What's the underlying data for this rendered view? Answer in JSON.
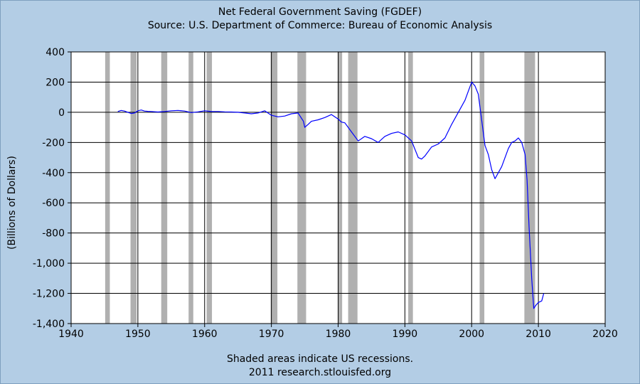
{
  "title": "Net Federal Government Saving (FGDEF)",
  "subtitle": "Source: U.S. Department of Commerce: Bureau of Economic Analysis",
  "footer": {
    "line1": "Shaded areas indicate US recessions.",
    "line2": "2011 research.stlouisfed.org"
  },
  "colors": {
    "background": "#b3cde5",
    "plot": "#ffffff",
    "line": "#0000ff",
    "recession": "#b0b0b0",
    "grid": "#000000"
  },
  "chart_data": {
    "type": "line",
    "title": "Net Federal Government Saving (FGDEF)",
    "subtitle": "Source: U.S. Department of Commerce: Bureau of Economic Analysis",
    "xlabel": "",
    "ylabel": "(Billions of Dollars)",
    "xlim": [
      1940,
      2020
    ],
    "ylim": [
      -1400,
      400
    ],
    "xticks": [
      1940,
      1950,
      1960,
      1970,
      1980,
      1990,
      2000,
      2010,
      2020
    ],
    "xtick_labels": [
      "1940",
      "1950",
      "1960",
      "1970",
      "1980",
      "1990",
      "2000",
      "2010",
      "2020"
    ],
    "yticks": [
      -1400,
      -1200,
      -1000,
      -800,
      -600,
      -400,
      -200,
      0,
      200,
      400
    ],
    "ytick_labels": [
      "-1,400",
      "-1,200",
      "-1,000",
      "-800",
      "-600",
      "-400",
      "-200",
      "0",
      "200",
      "400"
    ],
    "grid": true,
    "recessions": [
      [
        1945.1,
        1945.8
      ],
      [
        1948.9,
        1949.8
      ],
      [
        1953.5,
        1954.4
      ],
      [
        1957.6,
        1958.3
      ],
      [
        1960.3,
        1961.1
      ],
      [
        1969.9,
        1970.9
      ],
      [
        1973.9,
        1975.2
      ],
      [
        1980.0,
        1980.6
      ],
      [
        1981.5,
        1982.9
      ],
      [
        1990.5,
        1991.2
      ],
      [
        2001.2,
        2001.9
      ],
      [
        2007.9,
        2009.5
      ]
    ],
    "series": [
      {
        "name": "",
        "x": [
          1947.0,
          1947.5,
          1948.0,
          1948.5,
          1949.0,
          1949.5,
          1950.0,
          1950.5,
          1951.0,
          1951.5,
          1952.0,
          1953.0,
          1954.0,
          1955.0,
          1956.0,
          1957.0,
          1958.0,
          1959.0,
          1960.0,
          1961.0,
          1962.0,
          1963.0,
          1964.0,
          1965.0,
          1966.0,
          1967.0,
          1968.0,
          1969.0,
          1970.0,
          1971.0,
          1972.0,
          1973.0,
          1974.0,
          1974.8,
          1975.0,
          1975.5,
          1976.0,
          1977.0,
          1978.0,
          1979.0,
          1980.0,
          1980.5,
          1981.0,
          1982.0,
          1983.0,
          1984.0,
          1985.0,
          1986.0,
          1987.0,
          1988.0,
          1989.0,
          1990.0,
          1991.0,
          1992.0,
          1992.5,
          1993.0,
          1994.0,
          1995.0,
          1996.0,
          1997.0,
          1998.0,
          1999.0,
          2000.0,
          2000.5,
          2001.0,
          2001.5,
          2002.0,
          2002.5,
          2003.0,
          2003.5,
          2004.0,
          2004.5,
          2005.0,
          2005.5,
          2006.0,
          2006.5,
          2007.0,
          2007.5,
          2008.0,
          2008.3,
          2008.6,
          2009.0,
          2009.3,
          2009.6,
          2010.0,
          2010.5,
          2010.8
        ],
        "y": [
          5,
          12,
          8,
          0,
          -8,
          -5,
          10,
          15,
          8,
          6,
          5,
          2,
          5,
          10,
          12,
          8,
          -2,
          3,
          10,
          5,
          5,
          3,
          2,
          0,
          -5,
          -10,
          -5,
          10,
          -20,
          -30,
          -25,
          -10,
          -5,
          -60,
          -100,
          -80,
          -60,
          -50,
          -35,
          -15,
          -45,
          -65,
          -70,
          -130,
          -190,
          -160,
          -175,
          -200,
          -160,
          -140,
          -130,
          -150,
          -190,
          -300,
          -310,
          -290,
          -230,
          -210,
          -170,
          -80,
          0,
          80,
          200,
          175,
          120,
          -50,
          -220,
          -280,
          -380,
          -440,
          -400,
          -360,
          -300,
          -240,
          -200,
          -190,
          -170,
          -200,
          -280,
          -450,
          -760,
          -1100,
          -1300,
          -1280,
          -1260,
          -1250,
          -1200
        ]
      }
    ]
  }
}
